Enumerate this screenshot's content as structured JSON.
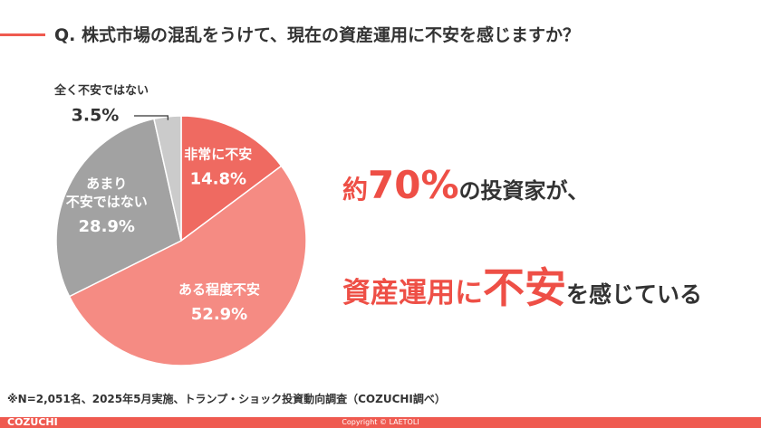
{
  "header": {
    "title": "Q. 株式市場の混乱をうけて、現在の資産運用に不安を感じますか？"
  },
  "chart_data": {
    "type": "pie",
    "categories": [
      "非常に不安",
      "ある程度不安",
      "あまり\n不安ではない",
      "全く不安ではない"
    ],
    "values": [
      14.8,
      52.9,
      28.9,
      3.5
    ],
    "value_labels": [
      "14.8%",
      "52.9%",
      "28.9%",
      "3.5%"
    ],
    "colors": [
      "#ef6a61",
      "#f58b83",
      "#a2a2a2",
      "#cbcbcb"
    ]
  },
  "headline": {
    "line1": [
      "約",
      "70%",
      "の投資家が、"
    ],
    "line2": [
      "資産運用に",
      "不安",
      "を感じている"
    ]
  },
  "footnote": "※N=2,051名、2025年5月実施、トランプ・ショック投資動向調査（COZUCHI調べ）",
  "footer": {
    "brand": "COZUCHI",
    "copyright": "Copyright © LAETOLI"
  }
}
